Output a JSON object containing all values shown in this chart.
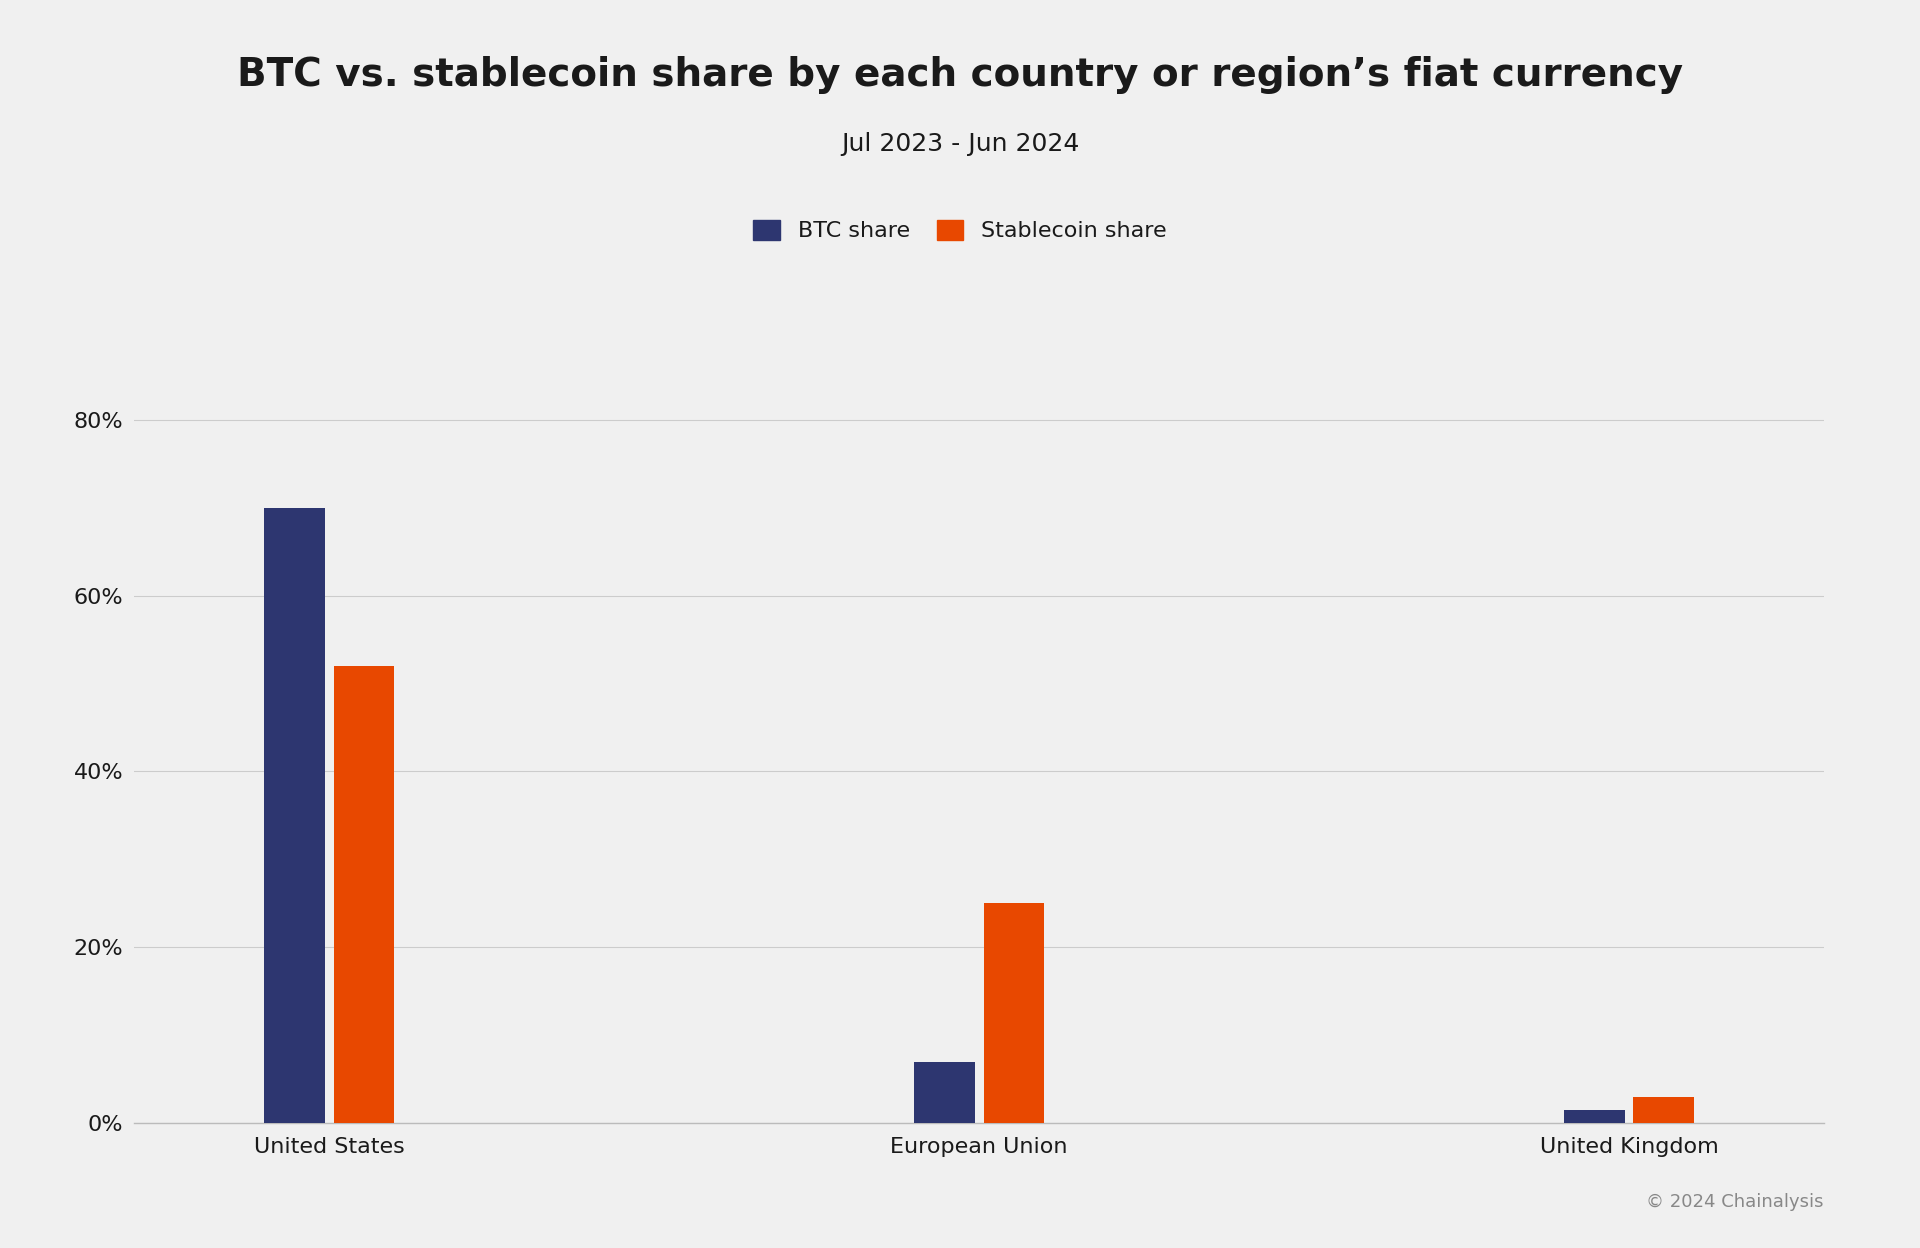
{
  "title": "BTC vs. stablecoin share by each country or region’s fiat currency",
  "subtitle": "Jul 2023 - Jun 2024",
  "categories": [
    "United States",
    "European Union",
    "United Kingdom"
  ],
  "btc_values": [
    0.7,
    0.07,
    0.015
  ],
  "stable_values": [
    0.52,
    0.25,
    0.03
  ],
  "btc_color": "#2d3670",
  "stable_color": "#e84800",
  "background_color": "#f0f0f0",
  "legend_labels": [
    "BTC share",
    "Stablecoin share"
  ],
  "yticks": [
    0.0,
    0.2,
    0.4,
    0.6,
    0.8
  ],
  "ytick_labels": [
    "0%",
    "20%",
    "40%",
    "60%",
    "80%"
  ],
  "ylim": [
    0,
    0.88
  ],
  "bar_width": 0.28,
  "title_fontsize": 28,
  "subtitle_fontsize": 18,
  "tick_fontsize": 16,
  "legend_fontsize": 16,
  "footnote": "© 2024 Chainalysis",
  "footnote_fontsize": 13,
  "grid_color": "#cccccc",
  "axis_color": "#bbbbbb",
  "text_color": "#1a1a1a"
}
